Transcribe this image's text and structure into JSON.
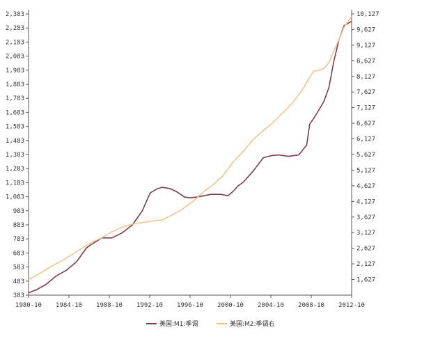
{
  "chart_data": {
    "type": "line",
    "x_ticks": [
      "1980-10",
      "1984-10",
      "1988-10",
      "1992-10",
      "1996-10",
      "2000-10",
      "2004-10",
      "2008-10",
      "2012-10"
    ],
    "y_left_ticks": [
      "2,383",
      "2,283",
      "2,183",
      "2,083",
      "1,983",
      "1,883",
      "1,783",
      "1,683",
      "1,583",
      "1,483",
      "1,383",
      "1,283",
      "1,183",
      "1,083",
      "983",
      "883",
      "783",
      "683",
      "583",
      "483",
      "383"
    ],
    "y_right_ticks": [
      "10,127",
      "9,627",
      "9,127",
      "8,627",
      "8,127",
      "7,627",
      "7,127",
      "6,627",
      "6,127",
      "5,627",
      "5,127",
      "4,627",
      "4,127",
      "3,627",
      "3,127",
      "2,627",
      "2,127",
      "1,627"
    ],
    "ylim_left": [
      383,
      2383
    ],
    "ylim_right": [
      1127,
      10127
    ],
    "series": [
      {
        "name": "美国:M1:季调",
        "axis": "left",
        "color": "#7b3b52",
        "x": [
          1980.75,
          1981.5,
          1982.5,
          1983.5,
          1984.5,
          1985.5,
          1986.5,
          1987.0,
          1988.0,
          1989.0,
          1990.0,
          1991.0,
          1992.0,
          1992.8,
          1993.5,
          1994.0,
          1994.8,
          1995.5,
          1996.2,
          1996.8,
          1997.8,
          1998.8,
          1999.8,
          2000.5,
          2001.0,
          2001.5,
          2002.0,
          2003.0,
          2004.0,
          2004.8,
          2005.5,
          2006.5,
          2007.5,
          2008.3,
          2008.6,
          2009.0,
          2009.5,
          2010.0,
          2010.5,
          2011.0,
          2011.5,
          2012.0,
          2012.75
        ],
        "values": [
          400,
          420,
          460,
          520,
          560,
          620,
          720,
          745,
          790,
          790,
          825,
          880,
          980,
          1110,
          1140,
          1150,
          1140,
          1115,
          1080,
          1075,
          1085,
          1100,
          1100,
          1090,
          1120,
          1160,
          1185,
          1265,
          1360,
          1375,
          1380,
          1370,
          1380,
          1450,
          1600,
          1640,
          1700,
          1760,
          1860,
          2050,
          2200,
          2300,
          2330
        ]
      },
      {
        "name": "美国:M2:季调右",
        "axis": "right",
        "color": "#f0c38a",
        "x": [
          1980.75,
          1981.75,
          1983.0,
          1984.0,
          1985.0,
          1986.0,
          1987.0,
          1988.0,
          1989.0,
          1990.0,
          1991.0,
          1992.0,
          1993.0,
          1994.0,
          1995.0,
          1996.0,
          1997.0,
          1998.0,
          1999.0,
          2000.0,
          2001.0,
          2002.0,
          2003.0,
          2004.0,
          2005.0,
          2006.0,
          2007.0,
          2008.0,
          2008.5,
          2009.0,
          2009.5,
          2010.0,
          2010.5,
          2011.0,
          2011.5,
          2012.0,
          2012.75
        ],
        "values": [
          1620,
          1800,
          2050,
          2220,
          2420,
          2620,
          2820,
          2960,
          3150,
          3300,
          3400,
          3450,
          3500,
          3530,
          3700,
          3880,
          4120,
          4410,
          4650,
          4950,
          5380,
          5720,
          6110,
          6390,
          6660,
          6980,
          7320,
          7760,
          8050,
          8300,
          8320,
          8380,
          8570,
          8960,
          9300,
          9700,
          10050
        ]
      }
    ]
  }
}
